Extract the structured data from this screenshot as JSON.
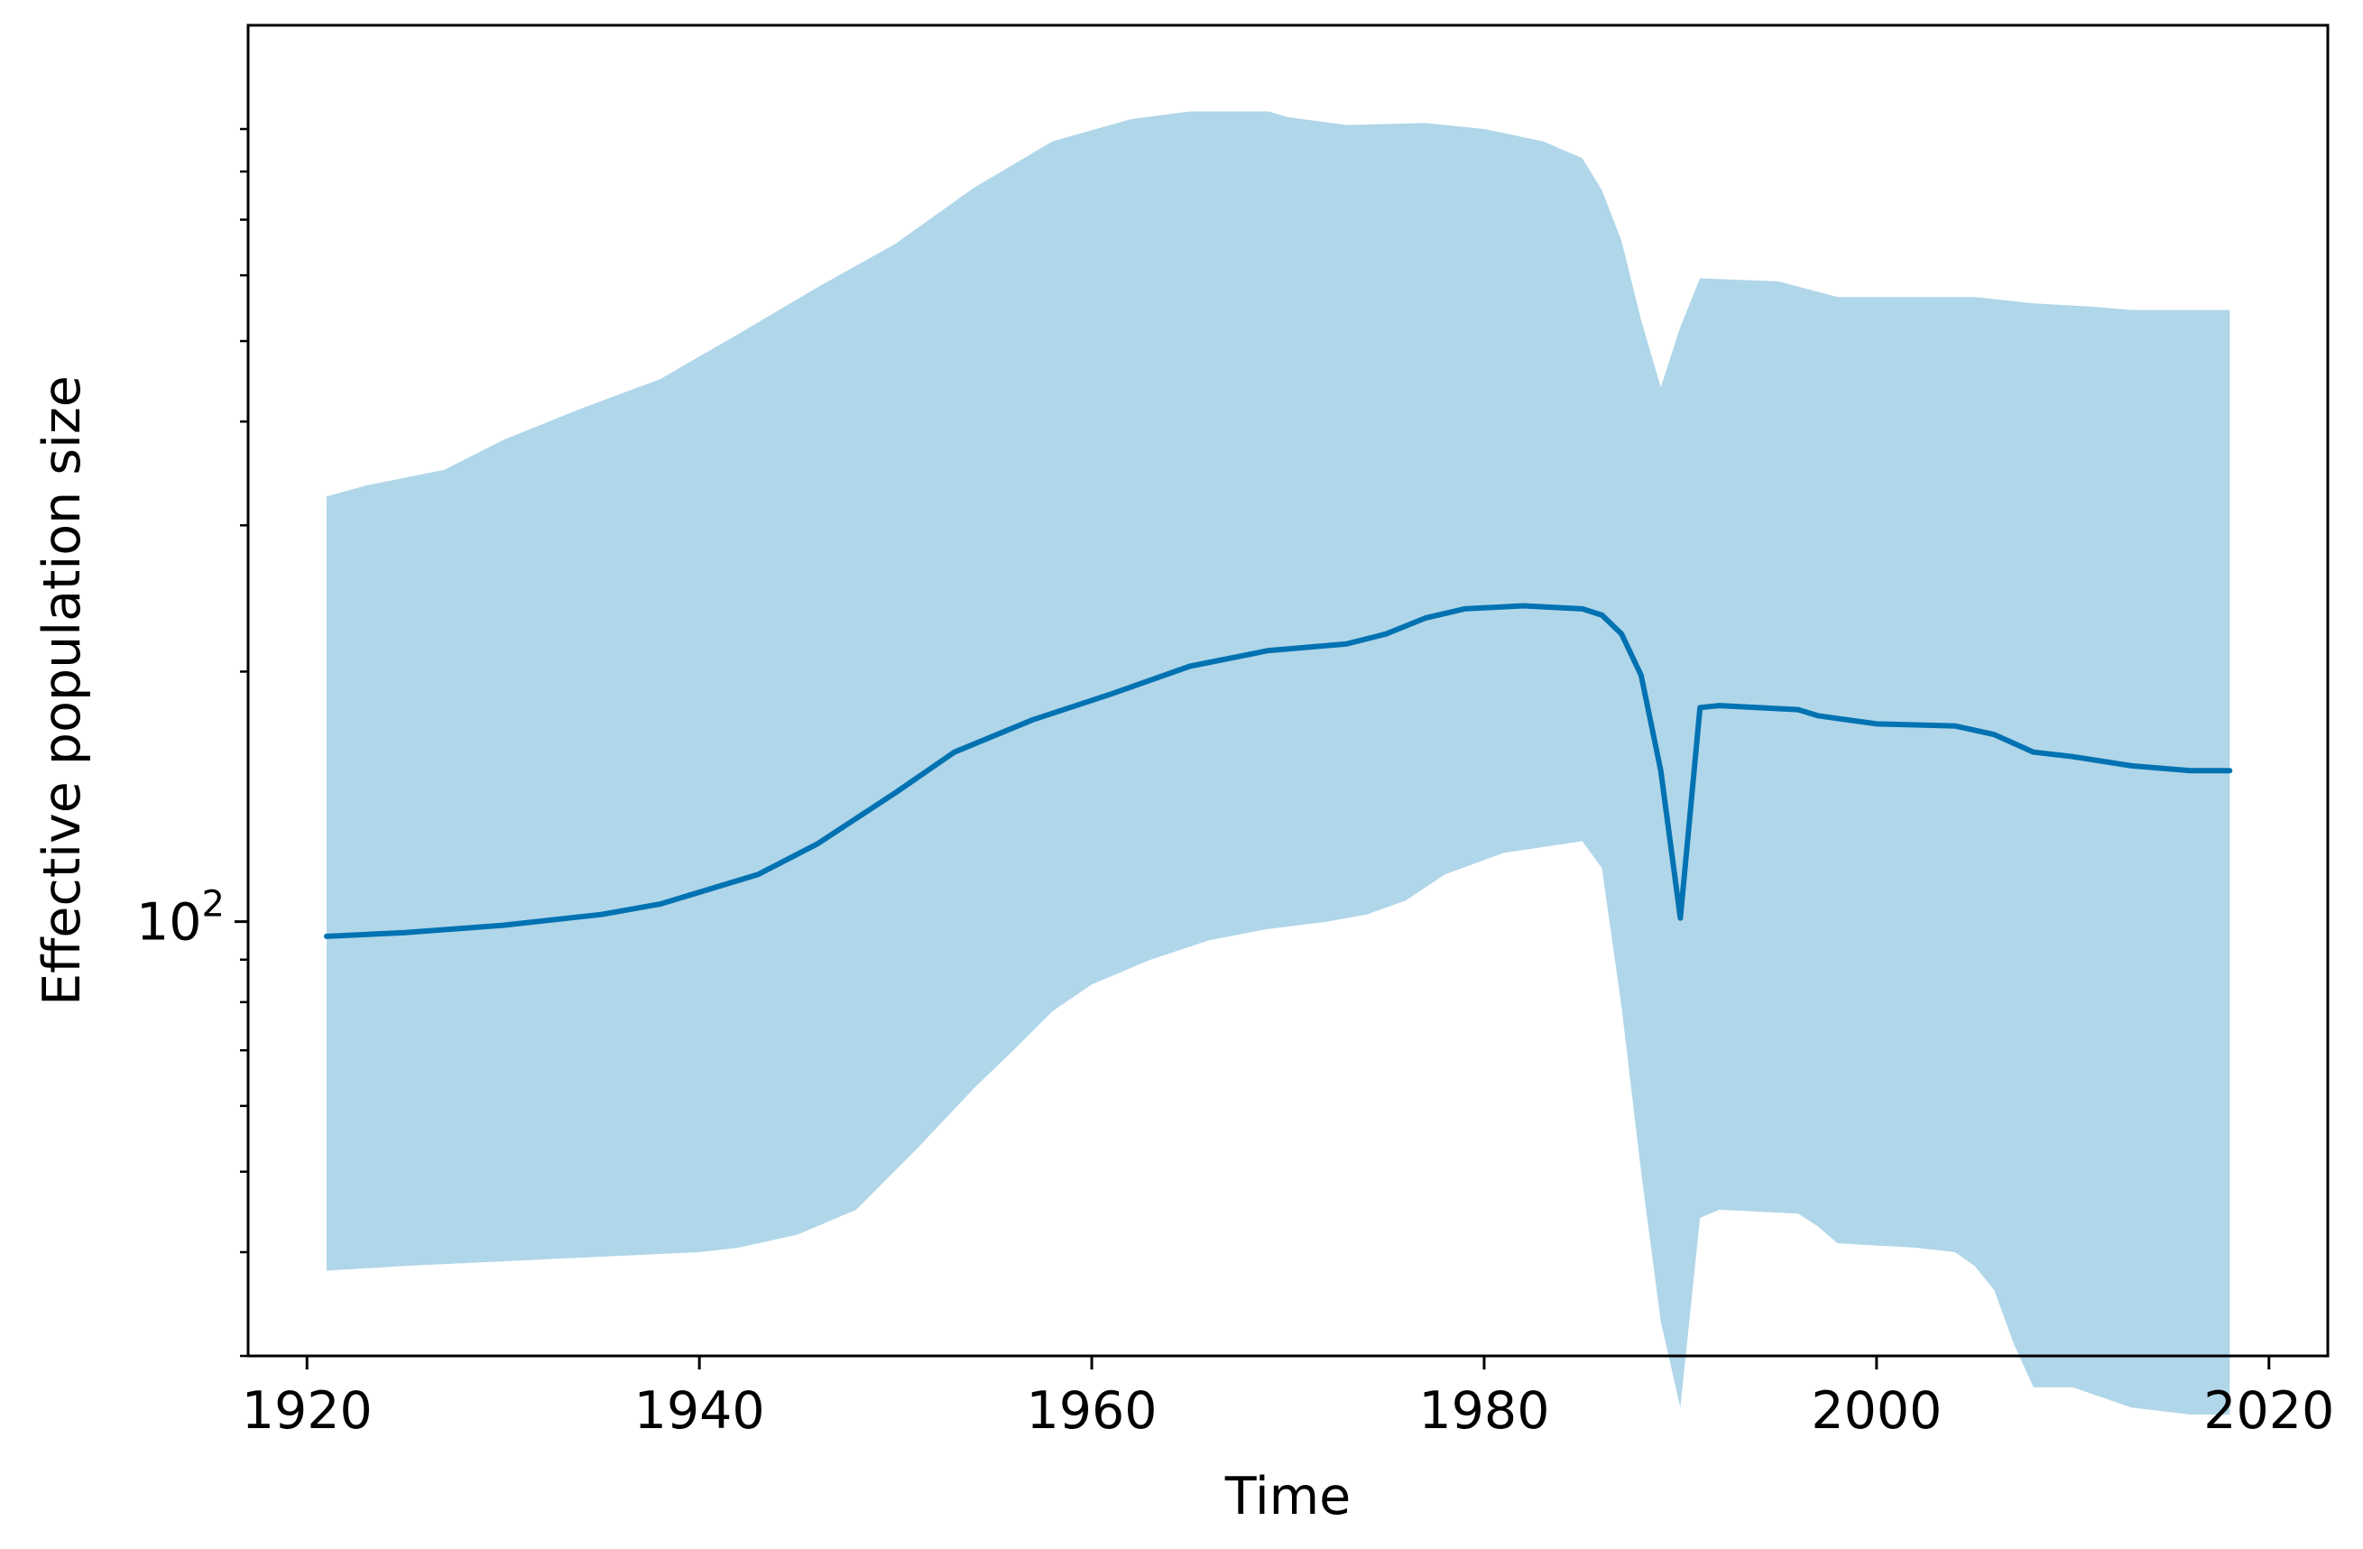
{
  "chart_data": {
    "type": "area",
    "title": "",
    "xlabel": "Time",
    "ylabel": "Effective population size",
    "xlim": [
      1917,
      2023
    ],
    "ylim": [
      30,
      1200
    ],
    "yscale": "log",
    "xticks": [
      1920,
      1940,
      1960,
      1980,
      2000,
      2020
    ],
    "xtick_labels": [
      "1920",
      "1940",
      "1960",
      "1980",
      "2000",
      "2020"
    ],
    "yticks_major": [
      100
    ],
    "ytick_labels": [
      {
        "base": "10",
        "exp": "2"
      }
    ],
    "yticks_minor": [
      30,
      40,
      50,
      60,
      70,
      80,
      90,
      200,
      300,
      400,
      500,
      600,
      700,
      800,
      900
    ],
    "grid": false,
    "colors": {
      "line": "#0072b2",
      "band": "#b0d6e9",
      "axes": "#000000"
    },
    "series": [
      {
        "role": "median",
        "x": [
          1921,
          1925,
          1930,
          1935,
          1938,
          1943,
          1946,
          1950,
          1953,
          1957,
          1961,
          1965,
          1969,
          1973,
          1975,
          1977,
          1979,
          1982,
          1985,
          1986,
          1987,
          1988,
          1989,
          1990,
          1991,
          1992,
          1996,
          1997,
          2000,
          2004,
          2006,
          2008,
          2010,
          2013,
          2016,
          2018
        ],
        "y": [
          96,
          97,
          99,
          102,
          105,
          114,
          124,
          143,
          160,
          175,
          188,
          203,
          212,
          216,
          222,
          232,
          238,
          240,
          238,
          234,
          222,
          198,
          152,
          101,
          181,
          182,
          180,
          177,
          173,
          172,
          168,
          160,
          158,
          154,
          152,
          152
        ]
      },
      {
        "role": "upper",
        "x": [
          1921,
          1923,
          1927,
          1930,
          1934,
          1938,
          1942,
          1946,
          1950,
          1954,
          1958,
          1962,
          1965,
          1969,
          1970,
          1973,
          1977,
          1980,
          1983,
          1985,
          1986,
          1987,
          1988,
          1989,
          1990,
          1991,
          1995,
          1998,
          2001,
          2005,
          2008,
          2011,
          2013,
          2016,
          2018
        ],
        "y": [
          325,
          335,
          350,
          380,
          415,
          450,
          510,
          580,
          655,
          765,
          870,
          925,
          945,
          945,
          930,
          910,
          915,
          900,
          870,
          830,
          760,
          660,
          530,
          440,
          520,
          595,
          590,
          565,
          565,
          565,
          555,
          550,
          545,
          545,
          545
        ]
      },
      {
        "role": "lower",
        "x": [
          1921,
          1925,
          1930,
          1935,
          1940,
          1942,
          1945,
          1948,
          1951,
          1954,
          1956,
          1958,
          1960,
          1963,
          1966,
          1969,
          1972,
          1974,
          1976,
          1978,
          1981,
          1984,
          1985,
          1986,
          1987,
          1988,
          1989,
          1990,
          1991,
          1992,
          1996,
          1997,
          1998,
          2002,
          2004,
          2005,
          2006,
          2007,
          2008,
          2010,
          2013,
          2016,
          2018
        ],
        "y": [
          38,
          38.5,
          39,
          39.5,
          40,
          40.5,
          42,
          45,
          53,
          63,
          70,
          78,
          84,
          90,
          95,
          98,
          100,
          102,
          106,
          114,
          121,
          124,
          125,
          116,
          79,
          50,
          33,
          26,
          44,
          45,
          44.5,
          43,
          41,
          40.5,
          40,
          38.5,
          36,
          31,
          27.5,
          27.5,
          26,
          25.5,
          25.5
        ]
      }
    ]
  }
}
